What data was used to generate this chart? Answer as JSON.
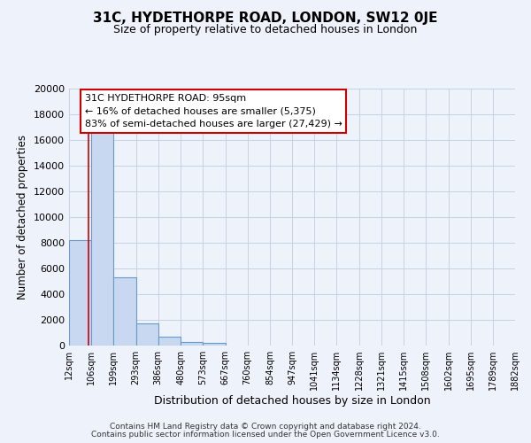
{
  "title": "31C, HYDETHORPE ROAD, LONDON, SW12 0JE",
  "subtitle": "Size of property relative to detached houses in London",
  "xlabel": "Distribution of detached houses by size in London",
  "ylabel": "Number of detached properties",
  "bar_edges": [
    12,
    106,
    199,
    293,
    386,
    480,
    573,
    667,
    760,
    854,
    947,
    1041,
    1134,
    1228,
    1321,
    1415,
    1508,
    1602,
    1695,
    1789,
    1882
  ],
  "bar_heights": [
    8200,
    16600,
    5300,
    1750,
    700,
    300,
    200,
    0,
    0,
    0,
    0,
    0,
    0,
    0,
    0,
    0,
    0,
    0,
    0,
    0
  ],
  "bar_color": "#c8d8f0",
  "bar_edge_color": "#6699cc",
  "property_line_x": 95,
  "property_line_color": "#cc0000",
  "ann_line1": "31C HYDETHORPE ROAD: 95sqm",
  "ann_line2": "← 16% of detached houses are smaller (5,375)",
  "ann_line3": "83% of semi-detached houses are larger (27,429) →",
  "ylim": [
    0,
    20000
  ],
  "yticks": [
    0,
    2000,
    4000,
    6000,
    8000,
    10000,
    12000,
    14000,
    16000,
    18000,
    20000
  ],
  "ytick_labels": [
    "0",
    "2000",
    "4000",
    "6000",
    "8000",
    "10000",
    "12000",
    "14000",
    "16000",
    "18000",
    "20000"
  ],
  "xtick_labels": [
    "12sqm",
    "106sqm",
    "199sqm",
    "293sqm",
    "386sqm",
    "480sqm",
    "573sqm",
    "667sqm",
    "760sqm",
    "854sqm",
    "947sqm",
    "1041sqm",
    "1134sqm",
    "1228sqm",
    "1321sqm",
    "1415sqm",
    "1508sqm",
    "1602sqm",
    "1695sqm",
    "1789sqm",
    "1882sqm"
  ],
  "grid_color": "#c8d0e4",
  "bg_color": "#eef2fa",
  "footer_line1": "Contains HM Land Registry data © Crown copyright and database right 2024.",
  "footer_line2": "Contains public sector information licensed under the Open Government Licence v3.0."
}
